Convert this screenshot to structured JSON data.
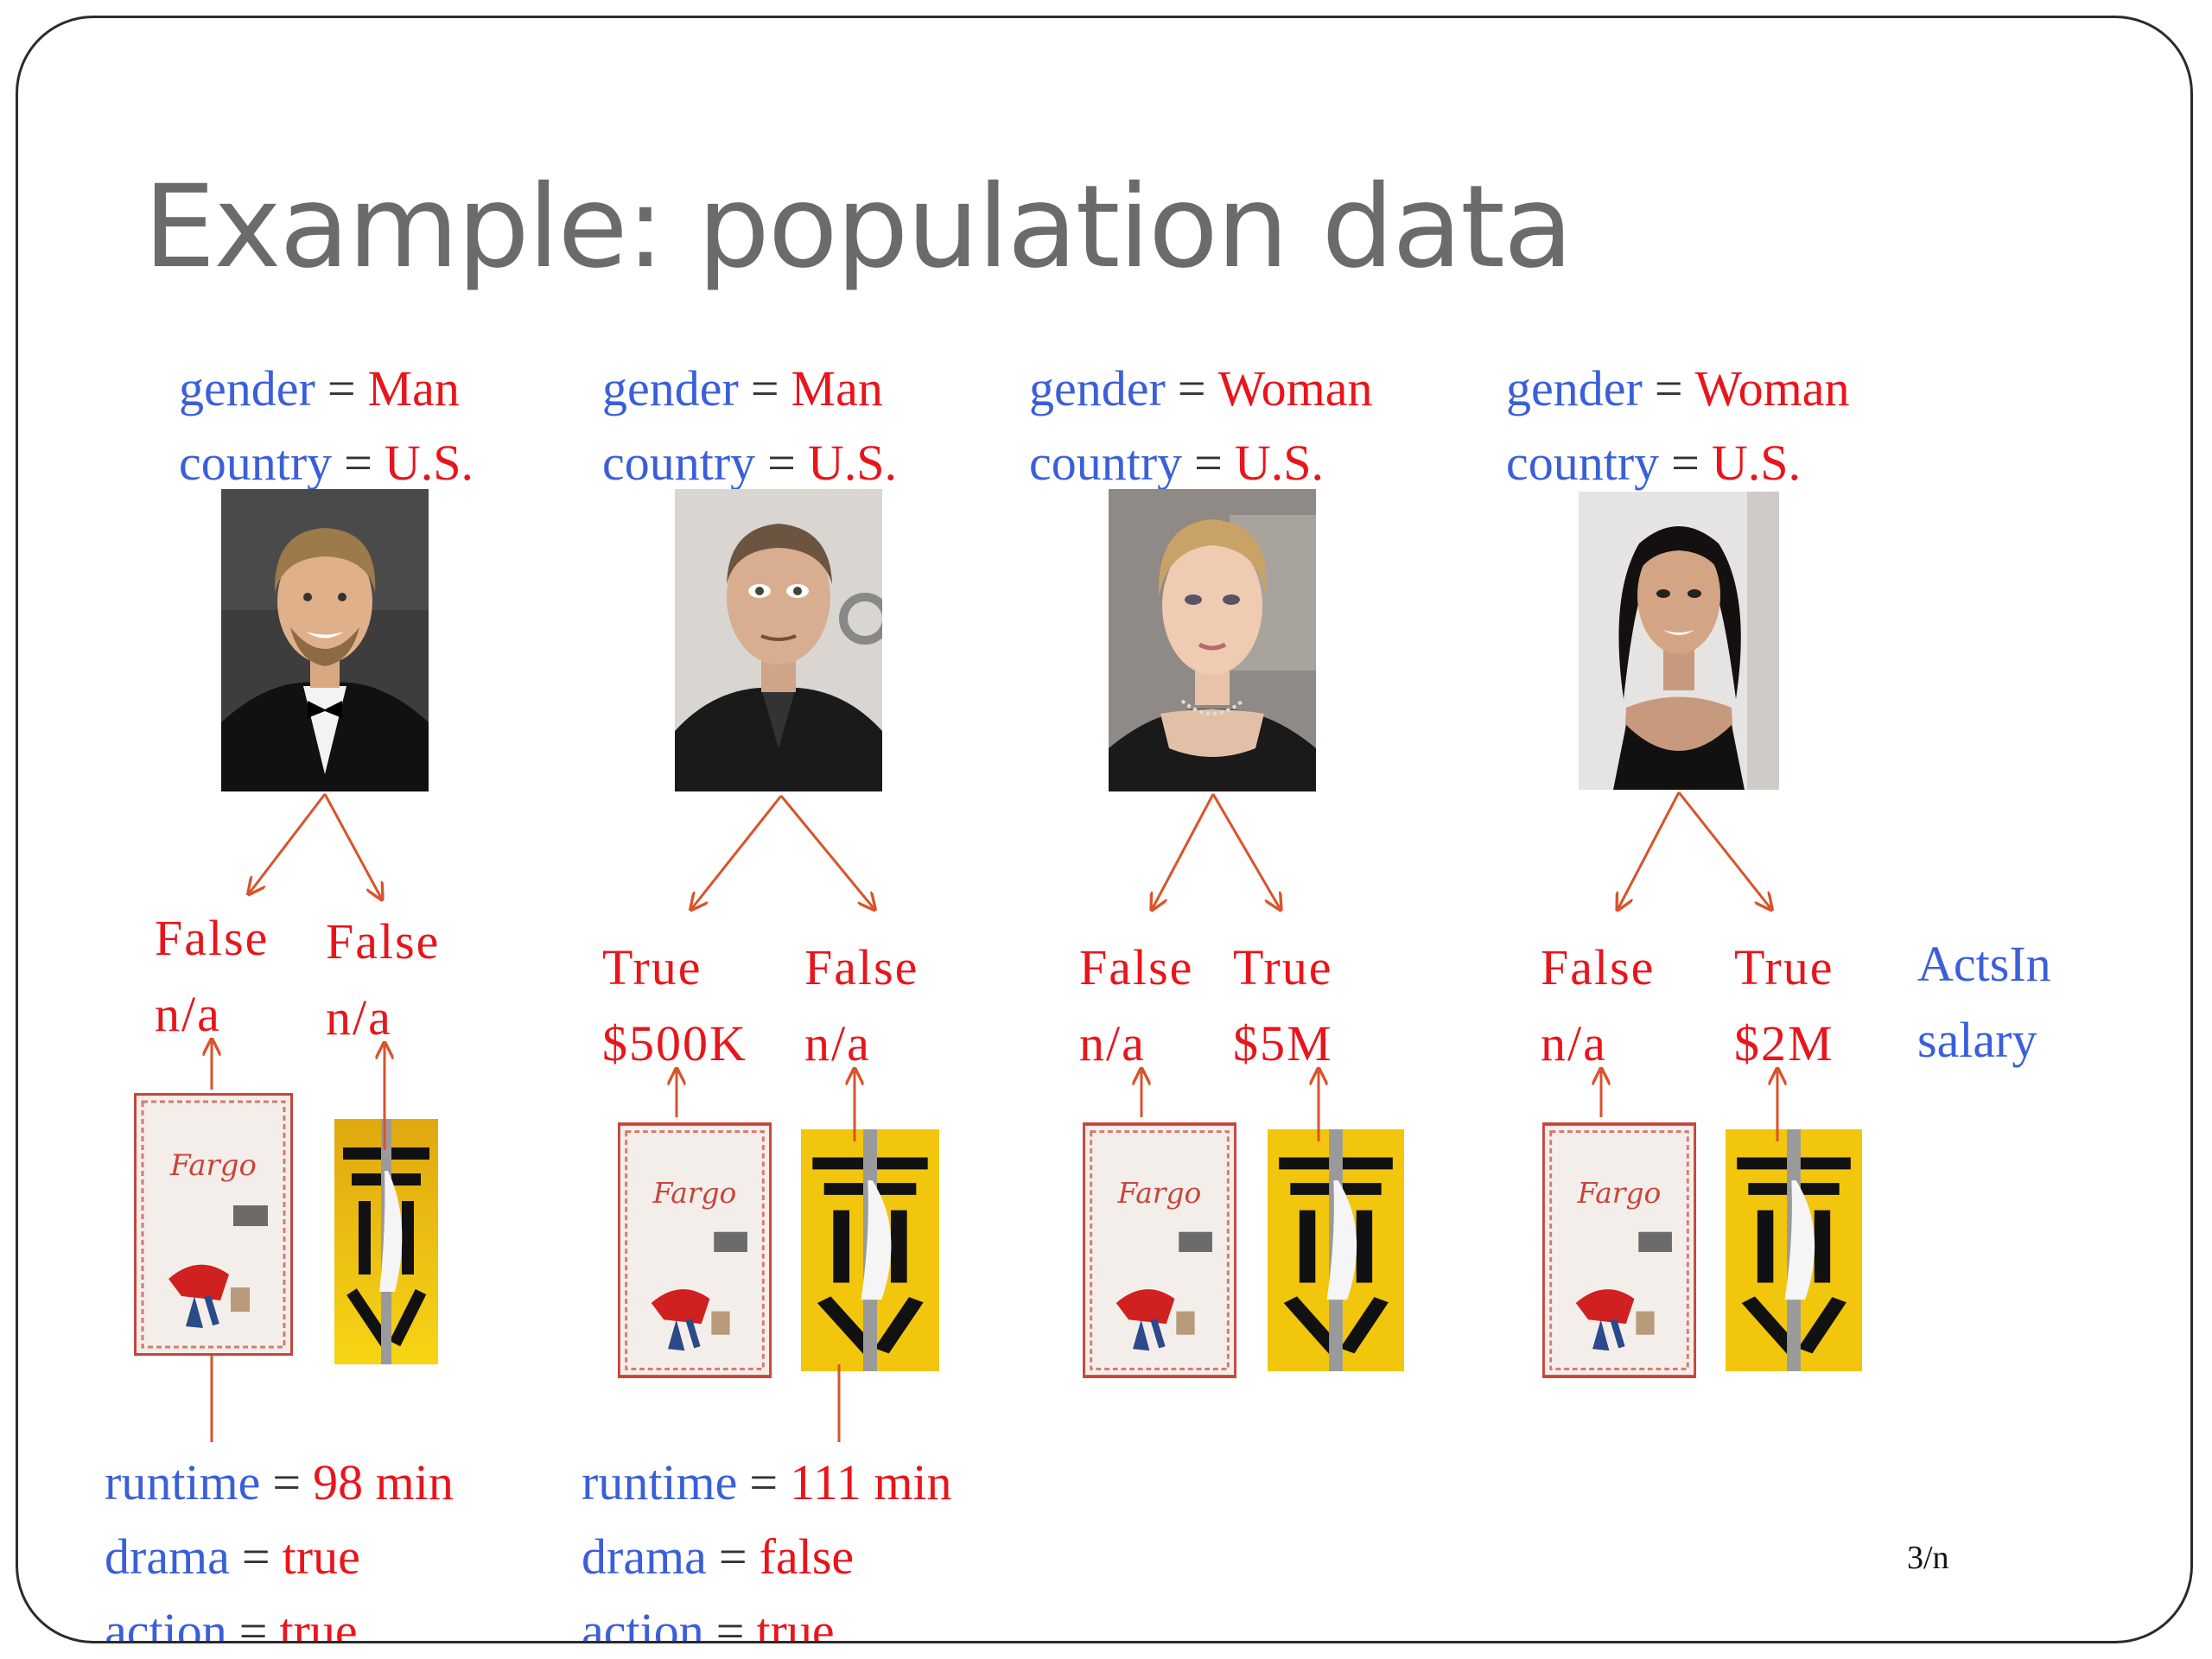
{
  "title": "Example: population data",
  "page_number": "3/n",
  "colors": {
    "key": "#3a5fd9",
    "value": "#e8151b",
    "arrow": "#d9532a",
    "title": "#6b6b6b"
  },
  "people": [
    {
      "gender_key": "gender",
      "gender": "Man",
      "country_key": "country",
      "country": "U.S.",
      "photo": "man-in-tuxedo-photo",
      "links": [
        {
          "acts_in": "False",
          "salary": "n/a"
        },
        {
          "acts_in": "False",
          "salary": "n/a"
        }
      ]
    },
    {
      "gender_key": "gender",
      "gender": "Man",
      "country_key": "country",
      "country": "U.S.",
      "photo": "man-in-black-shirt-photo",
      "links": [
        {
          "acts_in": "True",
          "salary": "$500K"
        },
        {
          "acts_in": "False",
          "salary": "n/a"
        }
      ]
    },
    {
      "gender_key": "gender",
      "gender": "Woman",
      "country_key": "country",
      "country": "U.S.",
      "photo": "blonde-woman-photo",
      "links": [
        {
          "acts_in": "False",
          "salary": "n/a"
        },
        {
          "acts_in": "True",
          "salary": "$5M"
        }
      ]
    },
    {
      "gender_key": "gender",
      "gender": "Woman",
      "country_key": "country",
      "country": "U.S.",
      "photo": "dark-haired-woman-photo",
      "links": [
        {
          "acts_in": "False",
          "salary": "n/a"
        },
        {
          "acts_in": "True",
          "salary": "$2M"
        }
      ]
    }
  ],
  "legend": {
    "acts_in": "ActsIn",
    "salary": "salary"
  },
  "movies": [
    {
      "poster": "fargo-poster",
      "runtime_key": "runtime",
      "runtime": "98 min",
      "drama_key": "drama",
      "drama": "true",
      "action_key": "action",
      "action": "true"
    },
    {
      "poster": "kill-bill-poster",
      "runtime_key": "runtime",
      "runtime": "111 min",
      "drama_key": "drama",
      "drama": "false",
      "action_key": "action",
      "action": "true"
    }
  ],
  "symbols": {
    "equals": "="
  }
}
